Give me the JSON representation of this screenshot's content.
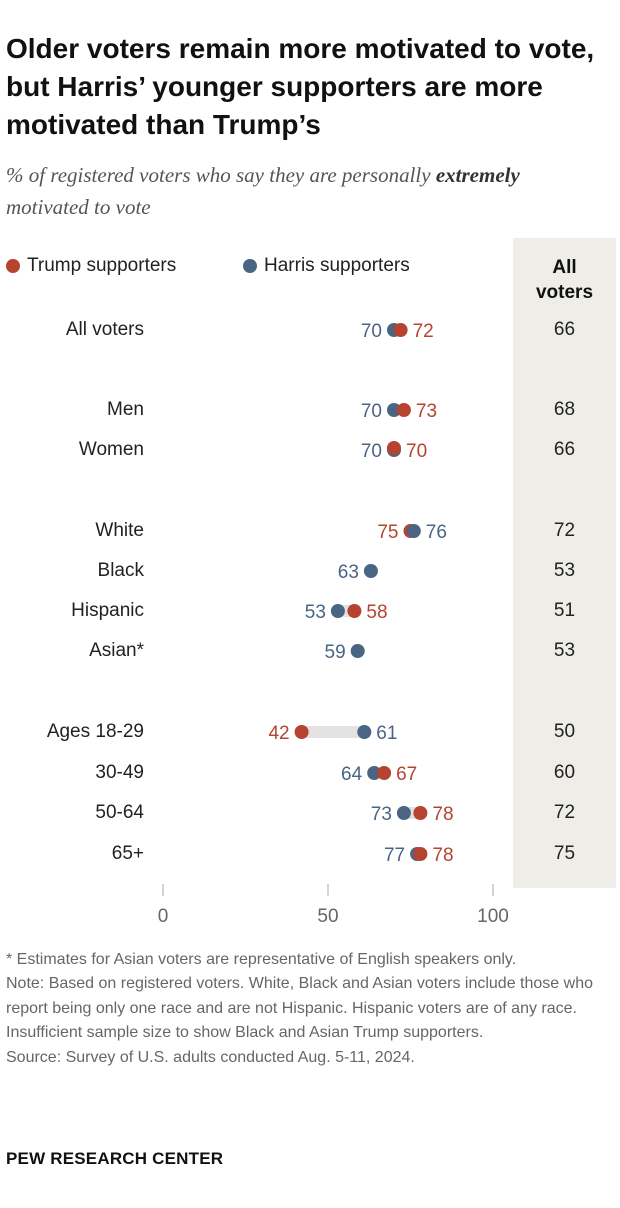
{
  "title": "Older voters remain more motivated to vote, but Harris’ younger supporters are more motivated than Trump’s",
  "subtitle": {
    "before": "% of registered voters who say they are personally ",
    "emphasis": "extremely",
    "after": " motivated to vote"
  },
  "legend": {
    "trump": "Trump supporters",
    "harris": "Harris supporters"
  },
  "all_voters_header": [
    "All",
    "voters"
  ],
  "colors": {
    "trump": "#b5432f",
    "harris": "#4a6584",
    "panel": "#eeede8",
    "range_bar": "#e3e3e3"
  },
  "chart_data": {
    "type": "dot",
    "x_ticks": [
      0,
      50,
      100
    ],
    "xlim": [
      0,
      100
    ],
    "rows": [
      {
        "label": "All voters",
        "trump": 72,
        "harris": 70,
        "all": 66
      },
      {
        "label": "Men",
        "trump": 73,
        "harris": 70,
        "all": 68
      },
      {
        "label": "Women",
        "trump": 70,
        "harris": 70,
        "all": 66
      },
      {
        "label": "White",
        "trump": 75,
        "harris": 76,
        "all": 72
      },
      {
        "label": "Black",
        "trump": null,
        "harris": 63,
        "all": 53
      },
      {
        "label": "Hispanic",
        "trump": 58,
        "harris": 53,
        "all": 51
      },
      {
        "label": "Asian*",
        "trump": null,
        "harris": 59,
        "all": 53
      },
      {
        "label": "Ages 18-29",
        "trump": 42,
        "harris": 61,
        "all": 50
      },
      {
        "label": "30-49",
        "trump": 67,
        "harris": 64,
        "all": 60
      },
      {
        "label": "50-64",
        "trump": 78,
        "harris": 73,
        "all": 72
      },
      {
        "label": "65+",
        "trump": 78,
        "harris": 77,
        "all": 75
      }
    ]
  },
  "notes": [
    "* Estimates for Asian voters are representative of English speakers only.",
    "Note: Based on registered voters. White, Black and Asian voters include those who report being only one race and are not Hispanic. Hispanic voters are of any race. Insufficient sample size to show Black and Asian Trump supporters.",
    "Source: Survey of U.S. adults conducted Aug. 5-11, 2024."
  ],
  "footer": "PEW RESEARCH CENTER"
}
